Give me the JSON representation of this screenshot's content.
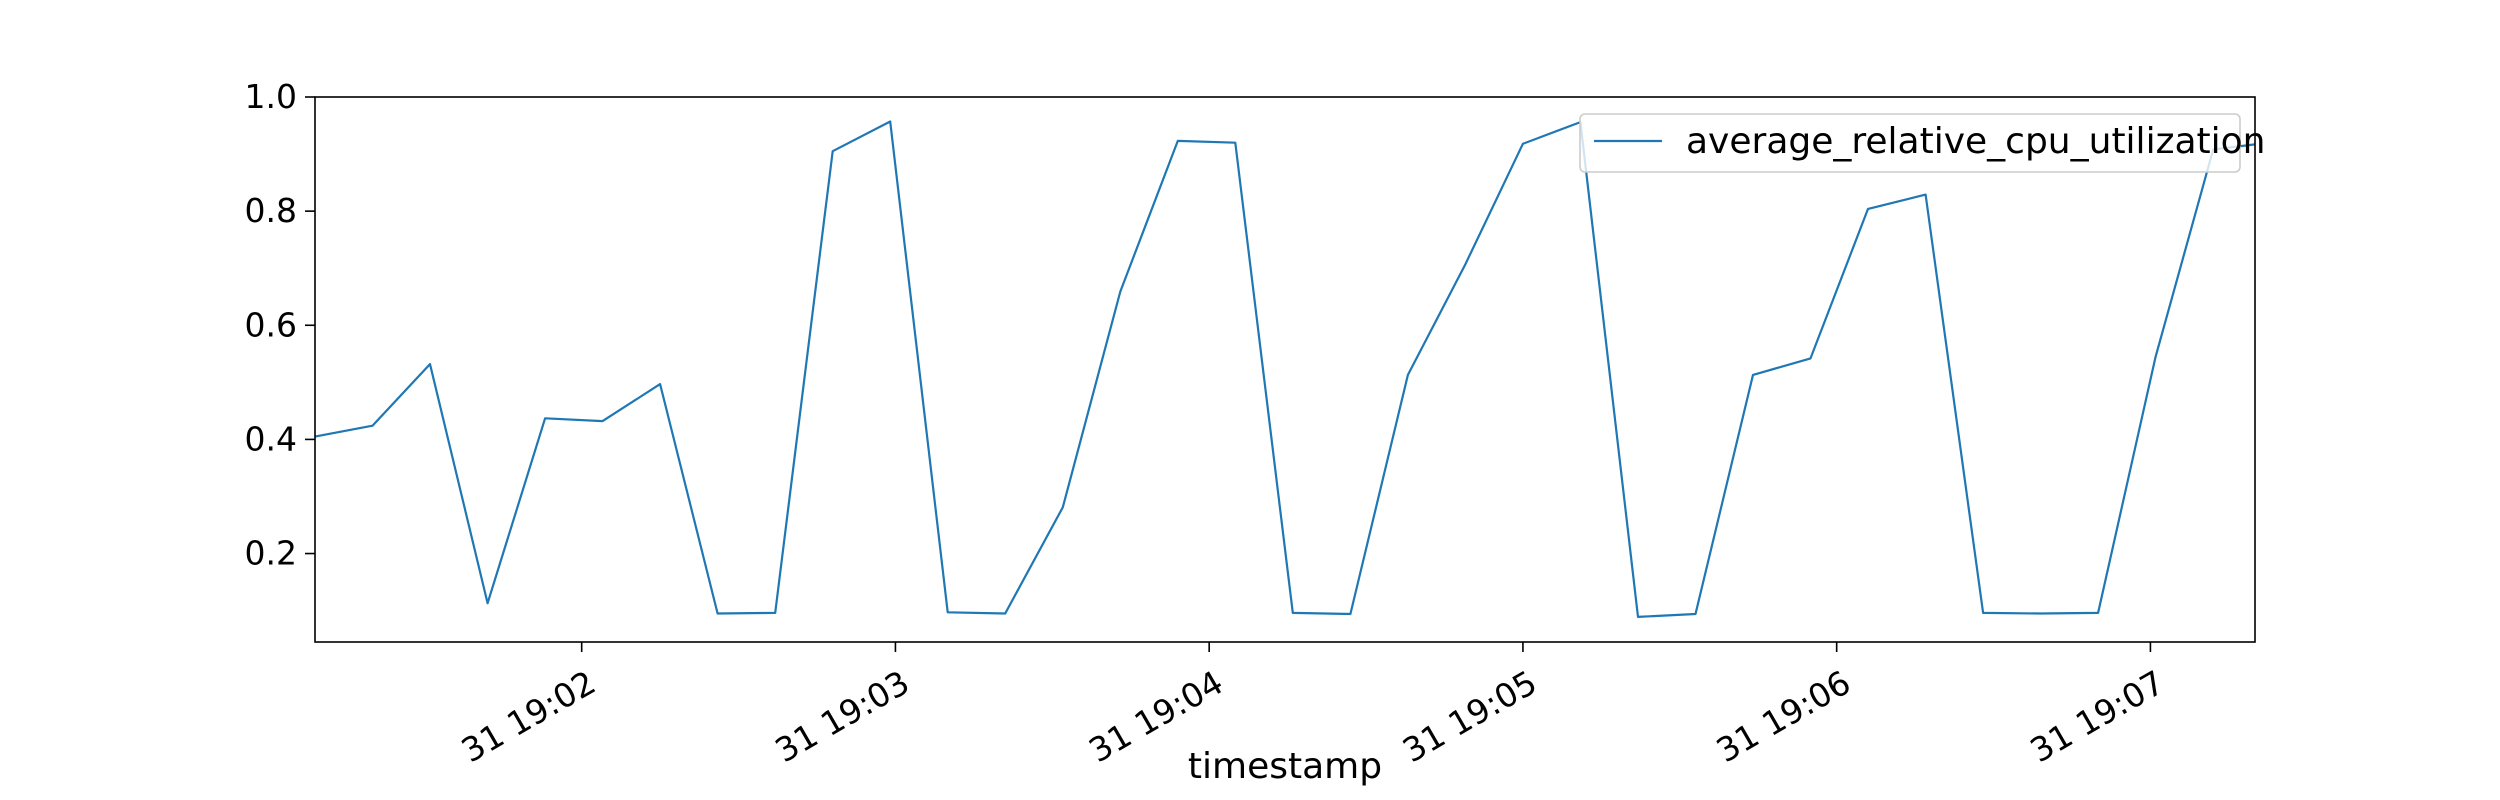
{
  "chart_data": {
    "type": "line",
    "title": "",
    "xlabel": "timestamp",
    "ylabel": "",
    "ylim": [
      0.045,
      1.0
    ],
    "xlim": [
      "19:01:09",
      "19:07:20"
    ],
    "grid": false,
    "legend": "top-right",
    "yticks": [
      {
        "v": 0.2,
        "label": "0.2"
      },
      {
        "v": 0.4,
        "label": "0.4"
      },
      {
        "v": 0.6,
        "label": "0.6"
      },
      {
        "v": 0.8,
        "label": "0.8"
      },
      {
        "v": 1.0,
        "label": "1.0"
      }
    ],
    "xticks": [
      {
        "t": "19:02:00",
        "label": "31 19:02"
      },
      {
        "t": "19:03:00",
        "label": "31 19:03"
      },
      {
        "t": "19:04:00",
        "label": "31 19:04"
      },
      {
        "t": "19:05:00",
        "label": "31 19:05"
      },
      {
        "t": "19:06:00",
        "label": "31 19:06"
      },
      {
        "t": "19:07:00",
        "label": "31 19:07"
      }
    ],
    "series": [
      {
        "name": "average_relative_cpu_utilization",
        "color": "#1f77b4",
        "x": [
          "19:01:09",
          "19:01:20",
          "19:01:31",
          "19:01:42",
          "19:01:53",
          "19:02:04",
          "19:02:15",
          "19:02:26",
          "19:02:37",
          "19:02:48",
          "19:02:59",
          "19:03:10",
          "19:03:21",
          "19:03:32",
          "19:03:43",
          "19:03:54",
          "19:04:05",
          "19:04:16",
          "19:04:27",
          "19:04:38",
          "19:04:49",
          "19:05:00",
          "19:05:11",
          "19:05:22",
          "19:05:33",
          "19:05:44",
          "19:05:55",
          "19:06:06",
          "19:06:17",
          "19:06:28",
          "19:06:39",
          "19:06:50",
          "19:07:01",
          "19:07:12",
          "19:07:20"
        ],
        "y": [
          0.405,
          0.424,
          0.532,
          0.113,
          0.437,
          0.432,
          0.497,
          0.095,
          0.096,
          0.905,
          0.957,
          0.097,
          0.095,
          0.281,
          0.659,
          0.923,
          0.92,
          0.096,
          0.094,
          0.513,
          0.707,
          0.918,
          0.956,
          0.089,
          0.094,
          0.513,
          0.542,
          0.804,
          0.829,
          0.096,
          0.095,
          0.096,
          0.545,
          0.908,
          0.917
        ]
      }
    ]
  }
}
